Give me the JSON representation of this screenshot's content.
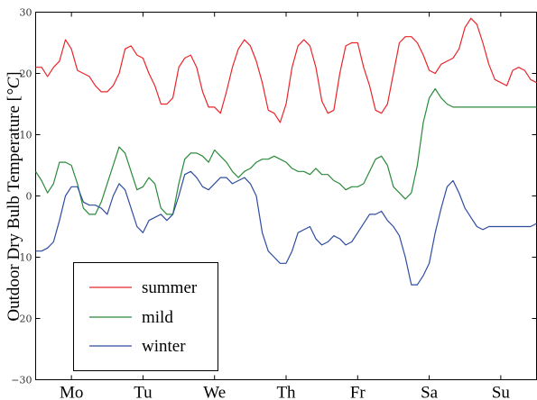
{
  "chart_data": {
    "type": "line",
    "ylabel": "Outdoor Dry Bulb Temperature [°C]",
    "ylabel_main": "Outdoor Dry Bulb Temperature [",
    "ylabel_unit": "°C",
    "ylabel_close": "]",
    "xlim": [
      0,
      168
    ],
    "ylim": [
      -30,
      30
    ],
    "yticks": [
      -30,
      -20,
      -10,
      0,
      10,
      20,
      30
    ],
    "ytick_labels": [
      "−30",
      "−20",
      "−10",
      "0",
      "10",
      "20",
      "30"
    ],
    "xtick_positions": [
      12,
      36,
      60,
      84,
      108,
      132,
      156
    ],
    "xtick_labels": [
      "Mo",
      "Tu",
      "We",
      "Th",
      "Fr",
      "Sa",
      "Su"
    ],
    "grid": false,
    "legend_position": "lower-left",
    "series": [
      {
        "name": "summer",
        "color": "#e8262b",
        "x": [
          0,
          2,
          4,
          6,
          8,
          10,
          12,
          14,
          16,
          18,
          20,
          22,
          24,
          26,
          28,
          30,
          32,
          34,
          36,
          38,
          40,
          42,
          44,
          46,
          48,
          50,
          52,
          54,
          56,
          58,
          60,
          62,
          64,
          66,
          68,
          70,
          72,
          74,
          76,
          78,
          80,
          82,
          84,
          86,
          88,
          90,
          92,
          94,
          96,
          98,
          100,
          102,
          104,
          106,
          108,
          110,
          112,
          114,
          116,
          118,
          120,
          122,
          124,
          126,
          128,
          130,
          132,
          134,
          136,
          138,
          140,
          142,
          144,
          146,
          148,
          150,
          152,
          154,
          156,
          158,
          160,
          162,
          164,
          166,
          168
        ],
        "y": [
          21,
          21,
          19.5,
          21,
          22,
          25.5,
          24,
          20.5,
          20,
          19.5,
          18,
          17,
          17,
          18,
          20,
          24,
          24.5,
          23,
          22.5,
          20,
          18,
          15,
          15,
          16,
          21,
          22.5,
          23,
          21,
          17,
          14.5,
          14.5,
          13.5,
          17,
          21,
          24,
          25.5,
          24.5,
          22,
          18.5,
          14,
          13.5,
          12,
          15,
          21,
          24.5,
          25.5,
          24.5,
          21,
          15.5,
          13.5,
          14,
          20,
          24.5,
          25,
          25,
          21,
          18,
          14,
          13.5,
          15,
          20,
          25,
          26,
          26,
          25,
          23,
          20.5,
          20,
          21.5,
          22,
          22.5,
          24,
          27.5,
          29,
          28,
          25,
          21.5,
          19,
          18.5,
          18,
          20.5,
          21,
          20.5,
          19,
          18.5
        ]
      },
      {
        "name": "mild",
        "color": "#2a8a3a",
        "x": [
          0,
          2,
          4,
          6,
          8,
          10,
          12,
          14,
          16,
          18,
          20,
          22,
          24,
          26,
          28,
          30,
          32,
          34,
          36,
          38,
          40,
          42,
          44,
          46,
          48,
          50,
          52,
          54,
          56,
          58,
          60,
          62,
          64,
          66,
          68,
          70,
          72,
          74,
          76,
          78,
          80,
          82,
          84,
          86,
          88,
          90,
          92,
          94,
          96,
          98,
          100,
          102,
          104,
          106,
          108,
          110,
          112,
          114,
          116,
          118,
          120,
          122,
          124,
          126,
          128,
          130,
          132,
          134,
          136,
          138,
          140,
          142,
          144,
          146,
          148,
          150,
          152,
          154,
          156,
          158,
          160,
          162,
          164,
          166,
          168
        ],
        "y": [
          4,
          2.5,
          0.5,
          2,
          5.5,
          5.5,
          5,
          2,
          -2,
          -3,
          -3,
          -1,
          2,
          5,
          8,
          7,
          4,
          1,
          1.5,
          3,
          2,
          -2,
          -3,
          -3,
          2,
          6,
          7,
          7,
          6.5,
          5.5,
          7.5,
          6.5,
          5.5,
          4,
          3,
          4,
          4.5,
          5.5,
          6,
          6,
          6.5,
          6,
          5.5,
          4.5,
          4,
          4,
          3.5,
          4.5,
          3.5,
          3.5,
          2.5,
          2,
          1,
          1.5,
          1.5,
          2,
          4,
          6,
          6.5,
          5,
          1.5,
          0.5,
          -0.5,
          0.5,
          5,
          12,
          16,
          17.5,
          16,
          15,
          14.5,
          14.5,
          14.5,
          14.5,
          14.5,
          14.5,
          14.5,
          14.5,
          14.5,
          14.5,
          14.5,
          14.5,
          14.5,
          14.5,
          14.5
        ]
      },
      {
        "name": "winter",
        "color": "#2f4da0",
        "x": [
          0,
          2,
          4,
          6,
          8,
          10,
          12,
          14,
          16,
          18,
          20,
          22,
          24,
          26,
          28,
          30,
          32,
          34,
          36,
          38,
          40,
          42,
          44,
          46,
          48,
          50,
          52,
          54,
          56,
          58,
          60,
          62,
          64,
          66,
          68,
          70,
          72,
          74,
          76,
          78,
          80,
          82,
          84,
          86,
          88,
          90,
          92,
          94,
          96,
          98,
          100,
          102,
          104,
          106,
          108,
          110,
          112,
          114,
          116,
          118,
          120,
          122,
          124,
          126,
          128,
          130,
          132,
          134,
          136,
          138,
          140,
          142,
          144,
          146,
          148,
          150,
          152,
          154,
          156,
          158,
          160,
          162,
          164,
          166,
          168
        ],
        "y": [
          -9,
          -9,
          -8.5,
          -7.5,
          -4,
          0,
          1.5,
          1.5,
          -1,
          -1.5,
          -1.5,
          -2,
          -3,
          0,
          2,
          1,
          -2,
          -5,
          -6,
          -4,
          -3.5,
          -3,
          -4,
          -3,
          0,
          3.5,
          4,
          3,
          1.5,
          1,
          2,
          3,
          3,
          2,
          2.5,
          3,
          2,
          0,
          -6,
          -9,
          -10,
          -11,
          -11,
          -9,
          -6,
          -5.5,
          -5,
          -7,
          -8,
          -7.5,
          -6.5,
          -7,
          -8,
          -7.5,
          -6,
          -4.5,
          -3,
          -3,
          -2.5,
          -4,
          -5,
          -6.5,
          -10,
          -14.5,
          -14.5,
          -13,
          -11,
          -6,
          -2,
          1.5,
          2.5,
          0.5,
          -2,
          -3.5,
          -5,
          -5.5,
          -5,
          -5,
          -5,
          -5,
          -5,
          -5,
          -5,
          -5,
          -4.5
        ]
      }
    ]
  }
}
